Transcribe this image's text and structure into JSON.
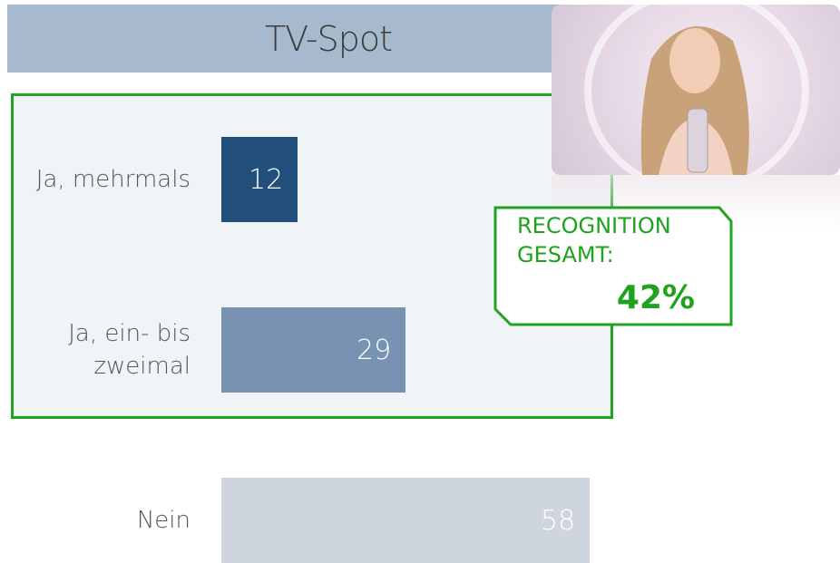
{
  "chart_data": {
    "type": "bar",
    "orientation": "horizontal",
    "title": "TV-Spot",
    "categories": [
      "Ja, mehrmals",
      "Ja, ein- bis zweimal",
      "Nein"
    ],
    "values": [
      12,
      29,
      58
    ],
    "colors": [
      "#214e7a",
      "#7893b1",
      "#cfd5de"
    ],
    "xlim": [
      0,
      66
    ],
    "annotation": {
      "text": "RECOGNITION GESAMT:",
      "value": 42,
      "value_label": "42%"
    }
  }
}
